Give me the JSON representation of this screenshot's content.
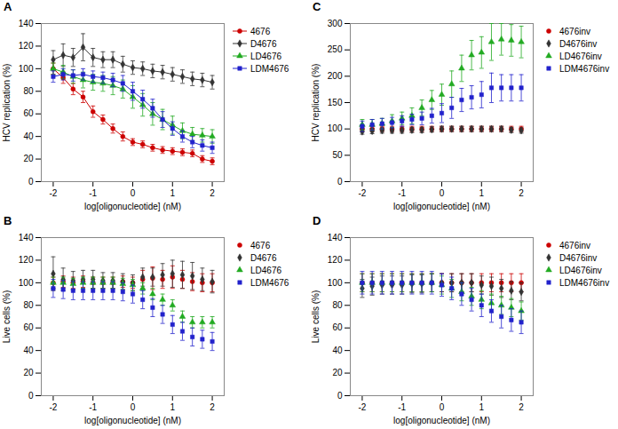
{
  "chart_data": [
    {
      "type": "line",
      "title": "A",
      "xlabel": "log[oligonucleotide] (nM)",
      "ylabel": "HCV replication (%)",
      "x": [
        -2,
        -1.75,
        -1.5,
        -1.25,
        -1,
        -0.75,
        -0.5,
        -0.25,
        0,
        0.25,
        0.5,
        0.75,
        1,
        1.25,
        1.5,
        1.75,
        2
      ],
      "xlim": [
        -2.3,
        2.3
      ],
      "xticks": [
        -2,
        -1,
        0,
        1,
        2
      ],
      "ylim": [
        0,
        140
      ],
      "yticks": [
        0,
        20,
        40,
        60,
        80,
        100,
        120,
        140
      ],
      "grid": false,
      "series": [
        {
          "name": "4676",
          "color": "#cc0000",
          "marker": "circle",
          "values": [
            100,
            92,
            82,
            75,
            62,
            55,
            47,
            40,
            35,
            33,
            30,
            28,
            27,
            26,
            25,
            20,
            18
          ],
          "yerr": [
            5,
            5,
            5,
            5,
            5,
            4,
            4,
            4,
            3,
            3,
            3,
            3,
            3,
            3,
            3,
            3,
            3
          ]
        },
        {
          "name": "D4676",
          "color": "#333333",
          "marker": "diamond",
          "values": [
            108,
            112,
            110,
            119,
            110,
            108,
            108,
            104,
            101,
            100,
            98,
            97,
            95,
            93,
            91,
            90,
            88
          ],
          "yerr": [
            8,
            10,
            8,
            12,
            8,
            7,
            7,
            7,
            6,
            6,
            6,
            6,
            6,
            6,
            6,
            6,
            6
          ]
        },
        {
          "name": "LD4676",
          "color": "#22aa22",
          "marker": "triangle",
          "values": [
            100,
            97,
            93,
            90,
            88,
            87,
            85,
            82,
            75,
            68,
            60,
            55,
            50,
            45,
            42,
            41,
            40
          ],
          "yerr": [
            5,
            6,
            6,
            7,
            7,
            7,
            8,
            8,
            10,
            10,
            10,
            9,
            8,
            7,
            6,
            6,
            6
          ]
        },
        {
          "name": "LDM4676",
          "color": "#2222cc",
          "marker": "square",
          "values": [
            93,
            95,
            94,
            95,
            93,
            92,
            90,
            87,
            80,
            73,
            65,
            55,
            47,
            40,
            35,
            32,
            30
          ],
          "yerr": [
            5,
            5,
            5,
            5,
            5,
            5,
            6,
            7,
            8,
            8,
            8,
            7,
            6,
            5,
            5,
            5,
            5
          ]
        }
      ]
    },
    {
      "type": "scatter",
      "title": "C",
      "xlabel": "log[oligonucleotide] (nM)",
      "ylabel": "HCV replication (%)",
      "x": [
        -2,
        -1.75,
        -1.5,
        -1.25,
        -1,
        -0.75,
        -0.5,
        -0.25,
        0,
        0.25,
        0.5,
        0.75,
        1,
        1.25,
        1.5,
        1.75,
        2
      ],
      "xlim": [
        -2.3,
        2.3
      ],
      "xticks": [
        -2,
        -1,
        0,
        1,
        2
      ],
      "ylim": [
        0,
        300
      ],
      "yticks": [
        0,
        50,
        100,
        150,
        200,
        250,
        300
      ],
      "grid": false,
      "series": [
        {
          "name": "4676inv",
          "color": "#cc0000",
          "marker": "circle",
          "values": [
            100,
            100,
            100,
            100,
            100,
            100,
            100,
            100,
            100,
            100,
            100,
            100,
            100,
            100,
            100,
            100,
            100
          ],
          "yerr": [
            5,
            5,
            5,
            5,
            5,
            5,
            5,
            5,
            5,
            5,
            5,
            5,
            5,
            5,
            5,
            5,
            5
          ]
        },
        {
          "name": "D4676inv",
          "color": "#333333",
          "marker": "diamond",
          "values": [
            95,
            96,
            97,
            97,
            97,
            98,
            98,
            99,
            100,
            100,
            100,
            100,
            100,
            100,
            100,
            98,
            97
          ],
          "yerr": [
            5,
            5,
            5,
            5,
            5,
            5,
            5,
            5,
            5,
            5,
            5,
            5,
            5,
            5,
            5,
            5,
            5
          ]
        },
        {
          "name": "LD4676inv",
          "color": "#22aa22",
          "marker": "triangle",
          "values": [
            108,
            108,
            110,
            115,
            120,
            125,
            140,
            155,
            165,
            185,
            215,
            240,
            245,
            265,
            270,
            268,
            265
          ],
          "yerr": [
            10,
            10,
            10,
            12,
            12,
            15,
            15,
            18,
            20,
            25,
            25,
            28,
            30,
            35,
            30,
            30,
            30
          ]
        },
        {
          "name": "LDM4676inv",
          "color": "#2222cc",
          "marker": "square",
          "values": [
            105,
            108,
            110,
            112,
            115,
            118,
            120,
            125,
            130,
            140,
            155,
            160,
            165,
            178,
            178,
            178,
            178
          ],
          "yerr": [
            10,
            10,
            10,
            10,
            10,
            10,
            12,
            14,
            18,
            20,
            22,
            22,
            25,
            28,
            25,
            25,
            25
          ]
        }
      ]
    },
    {
      "type": "scatter",
      "title": "B",
      "xlabel": "log[oligonucleotide] (nM)",
      "ylabel": "Live cells (%)",
      "x": [
        -2,
        -1.75,
        -1.5,
        -1.25,
        -1,
        -0.75,
        -0.5,
        -0.25,
        0,
        0.25,
        0.5,
        0.75,
        1,
        1.25,
        1.5,
        1.75,
        2
      ],
      "xlim": [
        -2.3,
        2.3
      ],
      "xticks": [
        -2,
        -1,
        0,
        1,
        2
      ],
      "ylim": [
        0,
        140
      ],
      "yticks": [
        0,
        20,
        40,
        60,
        80,
        100,
        120,
        140
      ],
      "grid": false,
      "series": [
        {
          "name": "4676",
          "color": "#cc0000",
          "marker": "circle",
          "values": [
            100,
            101,
            100,
            101,
            100,
            100,
            100,
            101,
            100,
            103,
            104,
            103,
            105,
            103,
            101,
            100,
            100
          ],
          "yerr": [
            5,
            5,
            5,
            5,
            5,
            5,
            5,
            5,
            5,
            8,
            10,
            8,
            10,
            8,
            8,
            8,
            8
          ]
        },
        {
          "name": "D4676",
          "color": "#333333",
          "marker": "diamond",
          "values": [
            108,
            103,
            102,
            103,
            103,
            102,
            102,
            101,
            100,
            105,
            105,
            107,
            108,
            107,
            106,
            103,
            101
          ],
          "yerr": [
            15,
            10,
            8,
            8,
            8,
            7,
            7,
            7,
            7,
            8,
            8,
            10,
            12,
            12,
            12,
            10,
            10
          ]
        },
        {
          "name": "LD4676",
          "color": "#22aa22",
          "marker": "triangle",
          "values": [
            100,
            100,
            99,
            100,
            100,
            100,
            100,
            99,
            98,
            95,
            90,
            85,
            80,
            70,
            65,
            65,
            65
          ],
          "yerr": [
            5,
            5,
            5,
            5,
            5,
            5,
            5,
            5,
            5,
            5,
            5,
            5,
            5,
            5,
            5,
            5,
            5
          ]
        },
        {
          "name": "LDM4676",
          "color": "#2222cc",
          "marker": "square",
          "values": [
            95,
            94,
            93,
            93,
            93,
            93,
            93,
            92,
            90,
            85,
            78,
            72,
            63,
            57,
            52,
            50,
            48
          ],
          "yerr": [
            8,
            8,
            8,
            8,
            8,
            8,
            8,
            8,
            8,
            8,
            8,
            8,
            8,
            8,
            8,
            8,
            8
          ]
        }
      ]
    },
    {
      "type": "scatter",
      "title": "D",
      "xlabel": "log[oligonucleotide] (nM)",
      "ylabel": "Live cells (%)",
      "x": [
        -2,
        -1.75,
        -1.5,
        -1.25,
        -1,
        -0.75,
        -0.5,
        -0.25,
        0,
        0.25,
        0.5,
        0.75,
        1,
        1.25,
        1.5,
        1.75,
        2
      ],
      "xlim": [
        -2.3,
        2.3
      ],
      "xticks": [
        -2,
        -1,
        0,
        1,
        2
      ],
      "ylim": [
        0,
        140
      ],
      "yticks": [
        0,
        20,
        40,
        60,
        80,
        100,
        120,
        140
      ],
      "grid": false,
      "series": [
        {
          "name": "4676inv",
          "color": "#cc0000",
          "marker": "circle",
          "values": [
            100,
            100,
            100,
            100,
            100,
            100,
            100,
            100,
            100,
            100,
            100,
            100,
            100,
            100,
            100,
            100,
            100
          ],
          "yerr": [
            8,
            8,
            8,
            8,
            8,
            8,
            8,
            8,
            8,
            8,
            8,
            8,
            8,
            8,
            8,
            8,
            8
          ]
        },
        {
          "name": "D4676inv",
          "color": "#333333",
          "marker": "diamond",
          "values": [
            95,
            97,
            98,
            98,
            98,
            99,
            99,
            100,
            100,
            100,
            100,
            100,
            98,
            97,
            95,
            93,
            92
          ],
          "yerr": [
            8,
            8,
            8,
            8,
            8,
            8,
            8,
            8,
            8,
            8,
            8,
            8,
            8,
            8,
            8,
            8,
            8
          ]
        },
        {
          "name": "LD4676inv",
          "color": "#22aa22",
          "marker": "triangle",
          "values": [
            100,
            100,
            100,
            100,
            100,
            100,
            100,
            100,
            98,
            95,
            92,
            88,
            85,
            82,
            80,
            78,
            75
          ],
          "yerr": [
            8,
            8,
            8,
            8,
            8,
            8,
            8,
            8,
            8,
            8,
            8,
            8,
            8,
            8,
            8,
            8,
            8
          ]
        },
        {
          "name": "LDM4676inv",
          "color": "#2222cc",
          "marker": "square",
          "values": [
            100,
            100,
            100,
            100,
            100,
            100,
            100,
            100,
            98,
            95,
            90,
            85,
            80,
            75,
            70,
            67,
            65
          ],
          "yerr": [
            10,
            10,
            10,
            10,
            10,
            10,
            10,
            10,
            10,
            10,
            10,
            10,
            10,
            10,
            10,
            10,
            10
          ]
        }
      ]
    }
  ]
}
